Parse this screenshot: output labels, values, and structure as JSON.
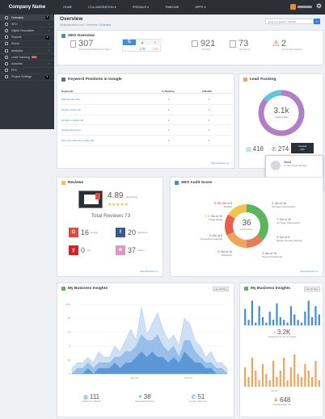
{
  "topbar": {
    "brand": "Company Name",
    "nav": [
      "HOME",
      "COLLABORATION ▾",
      "PRESALE ▾",
      "TIMELINE",
      "APPS ▾"
    ]
  },
  "sidebar": {
    "items": [
      {
        "label": "Overview",
        "badge": "3",
        "active": true
      },
      {
        "label": "SEO",
        "arrow": true
      },
      {
        "label": "Digital Reputation",
        "arrow": true
      },
      {
        "label": "Reports",
        "badge": "2"
      },
      {
        "label": "Social",
        "arrow": true
      },
      {
        "label": "Analytics",
        "arrow": true
      },
      {
        "label": "Lead Tracking",
        "new": "NEW"
      },
      {
        "label": "Adwords",
        "arrow": true
      },
      {
        "label": "PPC"
      },
      {
        "label": "Project Settings",
        "badge": "5"
      }
    ]
  },
  "header": {
    "title": "Overview",
    "crumb_pre": "Whitelabelclient.com  >  Overview  >  ",
    "crumb_cur": "Overview",
    "search_placeholder": "Jump to a project / Search",
    "search_icon": "search-icon"
  },
  "seo": {
    "title": "SEO Overview",
    "keywords": "307",
    "keywords_label": "Total Keywords Ranking On Page 1",
    "google_up": "179",
    "google_down": "128",
    "links": "921",
    "links_label": "Total links",
    "score": "73",
    "score_label": "Site Review",
    "errors": "2",
    "errors_label": "Errors Need Attention"
  },
  "keywords": {
    "title": "Keyword Positions in Google",
    "col_keyword": "Keywords",
    "col_desktop": "Desktop",
    "col_mobile": "Mobile",
    "rows": [
      {
        "k": "Hills Dentist Care",
        "d": "1",
        "m": "1"
      },
      {
        "k": "Dentist Castle Hill",
        "d": "1",
        "m": "1"
      },
      {
        "k": "Dentist in Castle Hill",
        "d": "1",
        "m": "1"
      },
      {
        "k": "Castle Hill Dentist",
        "d": "1",
        "m": "1"
      },
      {
        "k": "Pets Vine Dentistry Castle Hill",
        "d": "1",
        "m": "1"
      }
    ],
    "more": "View All Report ➔"
  },
  "lead": {
    "title": "Lead Tracking",
    "total": "3.1k",
    "total_label": "Total Leads",
    "forms": "418",
    "calls": "274",
    "contact_label": "Contact\ninfo",
    "manager_name": "Mandi",
    "manager_role": "Sr. SEO Project Manager",
    "manager_email": "dk.exo.abc@i.com",
    "donut_segments": [
      {
        "value": 0.86,
        "color": "#b07fc7"
      },
      {
        "value": 0.14,
        "color": "#5ec8d8"
      }
    ]
  },
  "reviews": {
    "title": "Reviews",
    "rating": "4.89",
    "rating_label": "Avg Rating",
    "total": "Total Reviews 73",
    "items": [
      {
        "icon": "G",
        "color": "#dd4b39",
        "n": "16",
        "label": "Google"
      },
      {
        "icon": "f",
        "color": "#3b5998",
        "n": "20",
        "label": "Facebook"
      },
      {
        "icon": "y",
        "color": "#d32323",
        "n": "0",
        "label": "Yelp"
      },
      {
        "icon": "★",
        "color": "#e493c2",
        "n": "37",
        "label": "Others"
      }
    ],
    "more": "View All Report ➔"
  },
  "audit": {
    "title": "SEO Audit Score",
    "score": "36",
    "score_label": "Audit Score",
    "segments": [
      {
        "value": 0.18,
        "color": "#5bb55b"
      },
      {
        "value": 0.18,
        "color": "#5bb55b"
      },
      {
        "value": 0.14,
        "color": "#e87a5e"
      },
      {
        "value": 0.18,
        "color": "#f0a35a"
      },
      {
        "value": 0.16,
        "color": "#e8604c"
      },
      {
        "value": 0.16,
        "color": "#f2c24a"
      }
    ],
    "labels": [
      {
        "v": "0.65",
        "t": "Out of 5",
        "s": "Mobility",
        "c": "#e8604c",
        "l": 42,
        "top": 30
      },
      {
        "v": "4.5",
        "t": "Out of 10",
        "s": "Social Media",
        "c": "#f0a35a",
        "l": 30,
        "top": 46
      },
      {
        "v": "2",
        "t": "Out of 5",
        "s": "Competitive Analysis",
        "c": "#e8604c",
        "l": 30,
        "top": 70
      },
      {
        "v": "0",
        "t": "Out of 10",
        "s": "Backlinks",
        "c": "#e8604c",
        "l": 42,
        "top": 90
      },
      {
        "v": "2",
        "t": "Out of 15",
        "s": "Off Page Optimization",
        "c": "#e8604c",
        "l": 122,
        "top": 30
      },
      {
        "v": "7",
        "t": "Out of 30",
        "s": "On Page Optimization",
        "c": "#5bb55b",
        "l": 128,
        "top": 50
      },
      {
        "v": "5",
        "t": "Out of 5",
        "s": "Mobile Friendly Website",
        "c": "#5bb55b",
        "l": 128,
        "top": 72
      },
      {
        "v": "2",
        "t": "Out of 10",
        "s": "Keyword Rankings",
        "c": "#e8604c",
        "l": 110,
        "top": 92
      }
    ],
    "more": "View All Report ➔"
  },
  "insights": {
    "title": "My Business Insights",
    "tag": "Last 30 Days",
    "xticks": [
      "Jan 30",
      "Feb 14"
    ],
    "chart_data": {
      "type": "area",
      "ylim": [
        0,
        12.5
      ],
      "yticks": [
        "12.5",
        "10",
        "7.5",
        "5",
        "2.5",
        "0"
      ],
      "series": [
        {
          "values": [
            1,
            2,
            2,
            3,
            2,
            4,
            3,
            3,
            5,
            4,
            6,
            8,
            6,
            12,
            7,
            9,
            11,
            8,
            6,
            7,
            5,
            10,
            9,
            6,
            5,
            3,
            4,
            2,
            2,
            1
          ]
        },
        {
          "values": [
            0,
            1,
            1,
            2,
            1,
            2,
            2,
            2,
            3,
            3,
            4,
            4,
            5,
            7,
            6,
            6,
            7,
            5,
            4,
            5,
            3,
            6,
            6,
            4,
            3,
            2,
            2,
            1,
            1,
            0
          ]
        },
        {
          "values": [
            0,
            0,
            0,
            1,
            0,
            1,
            1,
            1,
            2,
            1,
            2,
            2,
            3,
            4,
            3,
            4,
            3,
            3,
            2,
            3,
            2,
            4,
            3,
            2,
            2,
            1,
            1,
            0,
            0,
            0
          ]
        }
      ]
    },
    "stats": [
      {
        "icon": "globe-icon",
        "n": "111",
        "label": "Visited Your Website"
      },
      {
        "icon": "pin-icon",
        "n": "38",
        "label": "Requested Direction"
      },
      {
        "icon": "phone-icon",
        "n": "51",
        "label": "People Called You"
      }
    ]
  },
  "insights2": {
    "title": "My Business Insights",
    "tag": "Last 30 Days",
    "views": "3.2K",
    "views_label": "People Found You On Google",
    "visits": "648",
    "visits_label": "People Visited You",
    "xtick": "Jan 30",
    "bars1": [
      0.6,
      0.2,
      0.9,
      0.1,
      0.7,
      0.3,
      0.1,
      0.5,
      0.2,
      0.8,
      0.3,
      0.2,
      0.1,
      0.7,
      0.4,
      0.2,
      0.1,
      0.5,
      0.9,
      0.3,
      0.7,
      0.4
    ],
    "bars2": [
      0.6,
      0.3,
      0.9,
      0.5,
      0.2,
      0.7,
      0.4,
      0.2,
      0.8,
      0.3,
      0.5,
      0.9,
      0.2,
      0.6,
      1.0,
      0.4,
      0.3,
      0.7,
      0.5,
      0.3,
      0.8,
      0.2
    ]
  }
}
